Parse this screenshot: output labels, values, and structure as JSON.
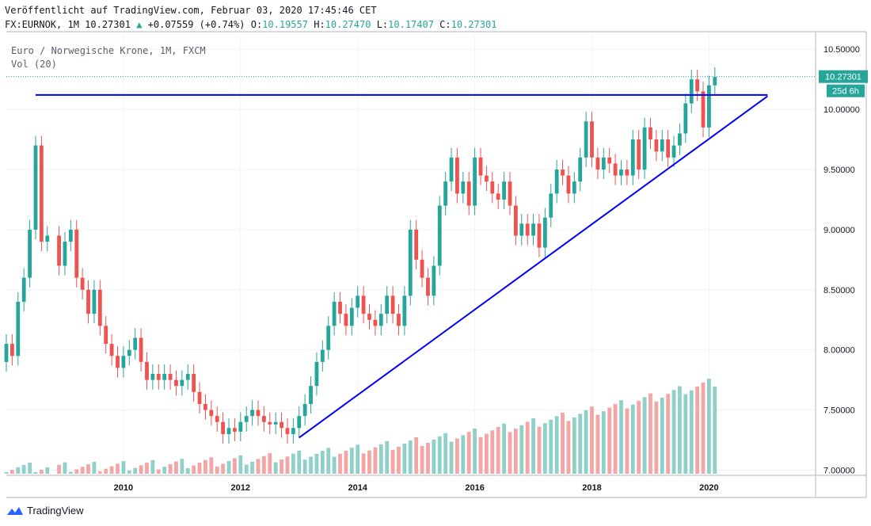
{
  "header": {
    "line1": "Veröffentlicht auf TradingView.com, Februar 03, 2020 17:45:46 CET",
    "symbol": "FX:EURNOK, 1M 10.27301",
    "change": "+0.07559 (+0.74%)",
    "o_label": "O:",
    "o_val": "10.19557",
    "h_label": "H:",
    "h_val": "10.27470",
    "l_label": "L:",
    "l_val": "10.17407",
    "c_label": "C:",
    "c_val": "10.27301"
  },
  "legend": {
    "title": "Euro / Norwegische Krone, 1M, FXCM",
    "indicator": "Vol (20)"
  },
  "price_label": "10.27301",
  "countdown_label": "25d 6h",
  "footer": {
    "brand": "TradingView"
  },
  "colors": {
    "up": "#26a69a",
    "down": "#ef5350",
    "vol_up": "#8fd1c9",
    "vol_down": "#f3a6a5",
    "trendline": "#0000ff",
    "price_label_bg": "#26a69a"
  },
  "chart_data": {
    "type": "candlestick",
    "title": "Euro / Norwegische Krone, 1M, FXCM",
    "price_axis_ticks": [
      7.0,
      7.5,
      8.0,
      8.5,
      9.0,
      9.5,
      10.0,
      10.5
    ],
    "price_axis_labels": [
      "7.00000",
      "7.50000",
      "8.00000",
      "8.50000",
      "9.00000",
      "9.50000",
      "10.00000",
      "10.50000"
    ],
    "time_axis_ticks": [
      2010,
      2012,
      2014,
      2016,
      2018,
      2020
    ],
    "time_axis_labels": [
      "2010",
      "2012",
      "2014",
      "2016",
      "2018",
      "2020"
    ],
    "ylim": [
      6.97,
      10.62
    ],
    "xlim": [
      2008.0,
      2021.82
    ],
    "last_price": 10.27301,
    "grid": true,
    "candles_open_close_approx": [
      [
        2008.0,
        7.9,
        8.05
      ],
      [
        2008.1,
        8.05,
        7.95
      ],
      [
        2008.2,
        7.95,
        8.4
      ],
      [
        2008.3,
        8.4,
        8.6
      ],
      [
        2008.4,
        8.6,
        9.0
      ],
      [
        2008.5,
        9.0,
        9.7
      ],
      [
        2008.6,
        9.7,
        8.9
      ],
      [
        2008.7,
        8.9,
        8.95
      ],
      [
        2008.9,
        8.95,
        8.7
      ],
      [
        2009.0,
        8.7,
        8.9
      ],
      [
        2009.1,
        8.9,
        9.0
      ],
      [
        2009.2,
        9.0,
        8.6
      ],
      [
        2009.3,
        8.6,
        8.5
      ],
      [
        2009.4,
        8.5,
        8.3
      ],
      [
        2009.5,
        8.3,
        8.5
      ],
      [
        2009.6,
        8.5,
        8.2
      ],
      [
        2009.7,
        8.2,
        8.05
      ],
      [
        2009.8,
        8.05,
        7.95
      ],
      [
        2009.9,
        7.95,
        7.85
      ],
      [
        2010.0,
        7.85,
        7.95
      ],
      [
        2010.1,
        7.95,
        8.0
      ],
      [
        2010.2,
        8.0,
        8.1
      ],
      [
        2010.3,
        8.1,
        7.9
      ],
      [
        2010.4,
        7.9,
        7.75
      ],
      [
        2010.5,
        7.75,
        7.8
      ],
      [
        2010.6,
        7.8,
        7.75
      ],
      [
        2010.7,
        7.75,
        7.8
      ],
      [
        2010.8,
        7.8,
        7.75
      ],
      [
        2010.9,
        7.75,
        7.7
      ],
      [
        2011.0,
        7.7,
        7.75
      ],
      [
        2011.1,
        7.75,
        7.8
      ],
      [
        2011.2,
        7.8,
        7.65
      ],
      [
        2011.3,
        7.65,
        7.55
      ],
      [
        2011.4,
        7.55,
        7.5
      ],
      [
        2011.5,
        7.5,
        7.45
      ],
      [
        2011.6,
        7.45,
        7.4
      ],
      [
        2011.7,
        7.4,
        7.3
      ],
      [
        2011.8,
        7.3,
        7.35
      ],
      [
        2011.9,
        7.35,
        7.32
      ],
      [
        2012.0,
        7.32,
        7.4
      ],
      [
        2012.1,
        7.4,
        7.45
      ],
      [
        2012.2,
        7.45,
        7.5
      ],
      [
        2012.3,
        7.5,
        7.45
      ],
      [
        2012.4,
        7.45,
        7.4
      ],
      [
        2012.5,
        7.4,
        7.38
      ],
      [
        2012.6,
        7.38,
        7.4
      ],
      [
        2012.7,
        7.4,
        7.35
      ],
      [
        2012.8,
        7.35,
        7.3
      ],
      [
        2012.9,
        7.3,
        7.35
      ],
      [
        2013.0,
        7.35,
        7.45
      ],
      [
        2013.1,
        7.45,
        7.55
      ],
      [
        2013.2,
        7.55,
        7.7
      ],
      [
        2013.3,
        7.7,
        7.9
      ],
      [
        2013.4,
        7.9,
        8.0
      ],
      [
        2013.5,
        8.0,
        8.2
      ],
      [
        2013.6,
        8.2,
        8.4
      ],
      [
        2013.7,
        8.4,
        8.3
      ],
      [
        2013.8,
        8.3,
        8.2
      ],
      [
        2013.9,
        8.2,
        8.35
      ],
      [
        2014.0,
        8.35,
        8.45
      ],
      [
        2014.1,
        8.45,
        8.3
      ],
      [
        2014.2,
        8.3,
        8.25
      ],
      [
        2014.3,
        8.25,
        8.2
      ],
      [
        2014.4,
        8.2,
        8.3
      ],
      [
        2014.5,
        8.3,
        8.45
      ],
      [
        2014.6,
        8.45,
        8.3
      ],
      [
        2014.7,
        8.3,
        8.2
      ],
      [
        2014.8,
        8.2,
        8.45
      ],
      [
        2014.9,
        8.45,
        9.0
      ],
      [
        2015.0,
        9.0,
        8.75
      ],
      [
        2015.1,
        8.75,
        8.6
      ],
      [
        2015.2,
        8.6,
        8.45
      ],
      [
        2015.3,
        8.45,
        8.7
      ],
      [
        2015.4,
        8.7,
        9.2
      ],
      [
        2015.5,
        9.2,
        9.4
      ],
      [
        2015.6,
        9.4,
        9.6
      ],
      [
        2015.7,
        9.6,
        9.3
      ],
      [
        2015.8,
        9.3,
        9.4
      ],
      [
        2015.9,
        9.4,
        9.2
      ],
      [
        2016.0,
        9.2,
        9.6
      ],
      [
        2016.1,
        9.6,
        9.45
      ],
      [
        2016.2,
        9.45,
        9.4
      ],
      [
        2016.3,
        9.4,
        9.3
      ],
      [
        2016.4,
        9.3,
        9.25
      ],
      [
        2016.5,
        9.25,
        9.4
      ],
      [
        2016.6,
        9.4,
        9.2
      ],
      [
        2016.7,
        9.2,
        8.95
      ],
      [
        2016.8,
        8.95,
        9.05
      ],
      [
        2016.9,
        9.05,
        8.95
      ],
      [
        2017.0,
        8.95,
        9.05
      ],
      [
        2017.1,
        9.05,
        8.85
      ],
      [
        2017.2,
        8.85,
        9.1
      ],
      [
        2017.3,
        9.1,
        9.3
      ],
      [
        2017.4,
        9.3,
        9.5
      ],
      [
        2017.5,
        9.5,
        9.45
      ],
      [
        2017.6,
        9.45,
        9.3
      ],
      [
        2017.7,
        9.3,
        9.4
      ],
      [
        2017.8,
        9.4,
        9.6
      ],
      [
        2017.9,
        9.6,
        9.9
      ],
      [
        2018.0,
        9.9,
        9.6
      ],
      [
        2018.1,
        9.6,
        9.5
      ],
      [
        2018.2,
        9.5,
        9.6
      ],
      [
        2018.3,
        9.6,
        9.55
      ],
      [
        2018.4,
        9.55,
        9.45
      ],
      [
        2018.5,
        9.45,
        9.5
      ],
      [
        2018.6,
        9.5,
        9.45
      ],
      [
        2018.7,
        9.45,
        9.75
      ],
      [
        2018.8,
        9.75,
        9.5
      ],
      [
        2018.9,
        9.5,
        9.85
      ],
      [
        2019.0,
        9.85,
        9.75
      ],
      [
        2019.1,
        9.75,
        9.65
      ],
      [
        2019.2,
        9.65,
        9.75
      ],
      [
        2019.3,
        9.75,
        9.6
      ],
      [
        2019.4,
        9.6,
        9.7
      ],
      [
        2019.5,
        9.7,
        9.8
      ],
      [
        2019.6,
        9.8,
        10.05
      ],
      [
        2019.7,
        10.05,
        10.25
      ],
      [
        2019.8,
        10.25,
        10.15
      ],
      [
        2019.9,
        10.15,
        9.85
      ],
      [
        2020.0,
        9.85,
        10.2
      ],
      [
        2020.1,
        10.2,
        10.27
      ]
    ],
    "annotations": {
      "horizontal_line": {
        "y": 10.12,
        "x_from": 2008.5,
        "x_to": 2021.0
      },
      "ascending_trendline": {
        "from": [
          2013.0,
          7.27
        ],
        "to": [
          2021.0,
          10.11
        ]
      }
    }
  }
}
